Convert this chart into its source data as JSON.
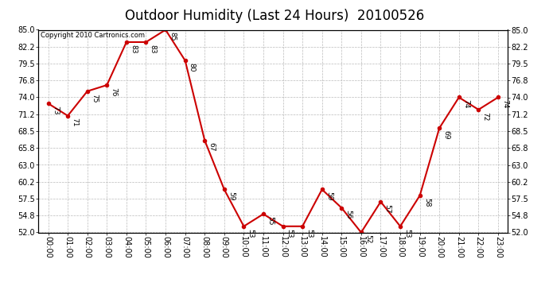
{
  "title": "Outdoor Humidity (Last 24 Hours)  20100526",
  "copyright_text": "Copyright 2010 Cartronics.com",
  "hours": [
    0,
    1,
    2,
    3,
    4,
    5,
    6,
    7,
    8,
    9,
    10,
    11,
    12,
    13,
    14,
    15,
    16,
    17,
    18,
    19,
    20,
    21,
    22,
    23
  ],
  "values": [
    73,
    71,
    75,
    76,
    83,
    83,
    85,
    80,
    67,
    59,
    53,
    55,
    53,
    53,
    59,
    56,
    52,
    57,
    53,
    58,
    69,
    74,
    72,
    74
  ],
  "xlabels": [
    "00:00",
    "01:00",
    "02:00",
    "03:00",
    "04:00",
    "05:00",
    "06:00",
    "07:00",
    "08:00",
    "09:00",
    "10:00",
    "11:00",
    "12:00",
    "13:00",
    "14:00",
    "15:00",
    "16:00",
    "17:00",
    "18:00",
    "19:00",
    "20:00",
    "21:00",
    "22:00",
    "23:00"
  ],
  "ylim": [
    52.0,
    85.0
  ],
  "yticks": [
    52.0,
    54.8,
    57.5,
    60.2,
    63.0,
    65.8,
    68.5,
    71.2,
    74.0,
    76.8,
    79.5,
    82.2,
    85.0
  ],
  "line_color": "#cc0000",
  "marker_color": "#cc0000",
  "bg_color": "#ffffff",
  "grid_color": "#bbbbbb",
  "title_fontsize": 12,
  "label_fontsize": 7,
  "annotation_fontsize": 6.5,
  "copyright_fontsize": 6
}
